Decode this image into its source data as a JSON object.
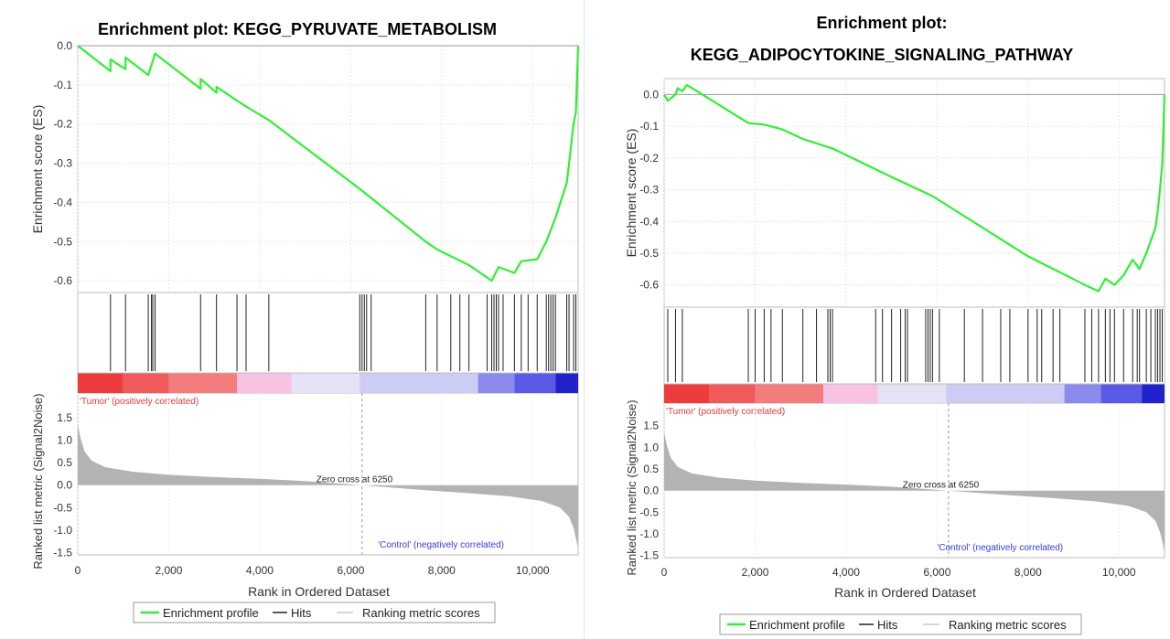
{
  "chart_data": [
    {
      "type": "line",
      "title": "Enrichment plot: KEGG_PYRUVATE_METABOLISM",
      "title_lines": [
        "Enrichment plot: KEGG_PYRUVATE_METABOLISM"
      ],
      "es_ylabel": "Enrichment score (ES)",
      "metric_ylabel": "Ranked list metric (Signal2Noise)",
      "xlabel": "Rank in Ordered Dataset",
      "xlim": [
        0,
        11000
      ],
      "x_ticks": [
        0,
        2000,
        4000,
        6000,
        8000,
        10000
      ],
      "x_tick_labels": [
        "0",
        "2,000",
        "4,000",
        "6,000",
        "8,000",
        "10,000"
      ],
      "es_ylim": [
        -0.63,
        0.0
      ],
      "es_ticks": [
        0.0,
        -0.1,
        -0.2,
        -0.3,
        -0.4,
        -0.5,
        -0.6
      ],
      "es_tick_labels": [
        "0.0",
        "-0.1",
        "-0.2",
        "-0.3",
        "-0.4",
        "-0.5",
        "-0.6"
      ],
      "metric_ylim": [
        -1.55,
        1.6
      ],
      "metric_ticks": [
        1.5,
        1.0,
        0.5,
        0.0,
        -0.5,
        -1.0,
        -1.5
      ],
      "metric_tick_labels": [
        "1.5",
        "1.0",
        "0.5",
        "0.0",
        "-0.5",
        "-1.0",
        "-1.5"
      ],
      "hits": [
        720,
        1050,
        1550,
        1620,
        1650,
        1700,
        2700,
        3050,
        3500,
        3700,
        4200,
        6200,
        6250,
        6300,
        6350,
        6450,
        7650,
        7900,
        8200,
        8400,
        8600,
        9000,
        9100,
        9150,
        9200,
        9250,
        9350,
        9600,
        9750,
        9900,
        10100,
        10300,
        10350,
        10400,
        10450,
        10500,
        10750,
        10800,
        10900,
        10950
      ],
      "es_curve": [
        [
          0,
          0.0
        ],
        [
          720,
          -0.065
        ],
        [
          720,
          -0.035
        ],
        [
          1050,
          -0.06
        ],
        [
          1050,
          -0.03
        ],
        [
          1550,
          -0.075
        ],
        [
          1620,
          -0.05
        ],
        [
          1700,
          -0.02
        ],
        [
          2700,
          -0.11
        ],
        [
          2700,
          -0.085
        ],
        [
          3050,
          -0.12
        ],
        [
          3050,
          -0.105
        ],
        [
          3500,
          -0.14
        ],
        [
          3700,
          -0.155
        ],
        [
          4200,
          -0.19
        ],
        [
          6250,
          -0.37
        ],
        [
          7650,
          -0.5
        ],
        [
          7900,
          -0.52
        ],
        [
          8600,
          -0.56
        ],
        [
          9100,
          -0.6
        ],
        [
          9250,
          -0.565
        ],
        [
          9600,
          -0.58
        ],
        [
          9750,
          -0.55
        ],
        [
          10100,
          -0.545
        ],
        [
          10300,
          -0.5
        ],
        [
          10400,
          -0.47
        ],
        [
          10500,
          -0.44
        ],
        [
          10750,
          -0.35
        ],
        [
          10800,
          -0.3
        ],
        [
          10900,
          -0.2
        ],
        [
          10950,
          -0.17
        ],
        [
          11000,
          0.0
        ]
      ],
      "metric_curve": [
        [
          0,
          1.35
        ],
        [
          60,
          1.05
        ],
        [
          150,
          0.75
        ],
        [
          300,
          0.55
        ],
        [
          600,
          0.4
        ],
        [
          1200,
          0.3
        ],
        [
          2000,
          0.23
        ],
        [
          3000,
          0.18
        ],
        [
          4000,
          0.14
        ],
        [
          5000,
          0.09
        ],
        [
          6250,
          0.0
        ],
        [
          7500,
          -0.1
        ],
        [
          8500,
          -0.17
        ],
        [
          9500,
          -0.25
        ],
        [
          10200,
          -0.35
        ],
        [
          10600,
          -0.5
        ],
        [
          10800,
          -0.7
        ],
        [
          10900,
          -0.95
        ],
        [
          11000,
          -1.4
        ]
      ],
      "zero_cross_x": 6250,
      "zero_cross_text": "Zero cross at 6250",
      "pos_label": "'Tumor' (positively correlated)",
      "neg_label": "'Control' (negatively correlated)",
      "heat_colors": [
        "#ee3b3b",
        "#f05a5a",
        "#f37d7d",
        "#f7c2e3",
        "#e6e2f5",
        "#ccccf5",
        "#8a8aec",
        "#5a5ae6",
        "#2222cc"
      ],
      "heat_stops": [
        0,
        1000,
        2000,
        3500,
        4700,
        6200,
        8800,
        9600,
        10500,
        11000
      ],
      "line_color": "#33ee33",
      "hit_color": "#222222",
      "bar_color": "#b3b3b3",
      "neg_label_x": 6600
    },
    {
      "type": "line",
      "title": "Enrichment plot: KEGG_ADIPOCYTOKINE_SIGNALING_PATHWAY",
      "title_lines": [
        "Enrichment plot:",
        "KEGG_ADIPOCYTOKINE_SIGNALING_PATHWAY"
      ],
      "es_ylabel": "Enrichment score (ES)",
      "metric_ylabel": "Ranked list metric (Signal2Noise)",
      "xlabel": "Rank in Ordered Dataset",
      "xlim": [
        0,
        11000
      ],
      "x_ticks": [
        0,
        2000,
        4000,
        6000,
        8000,
        10000
      ],
      "x_tick_labels": [
        "0",
        "2,000",
        "4,000",
        "6,000",
        "8,000",
        "10,000"
      ],
      "es_ylim": [
        -0.67,
        0.05
      ],
      "es_ticks": [
        0.0,
        -0.1,
        -0.2,
        -0.3,
        -0.4,
        -0.5,
        -0.6
      ],
      "es_tick_labels": [
        "0.0",
        "-0.1",
        "-0.2",
        "-0.3",
        "-0.4",
        "-0.5",
        "-0.6"
      ],
      "metric_ylim": [
        -1.55,
        1.6
      ],
      "metric_ticks": [
        1.5,
        1.0,
        0.5,
        0.0,
        -0.5,
        -1.0,
        -1.5
      ],
      "metric_tick_labels": [
        "1.5",
        "1.0",
        "0.5",
        "0.0",
        "-0.5",
        "-1.0",
        "-1.5"
      ],
      "hits": [
        80,
        250,
        400,
        1850,
        2000,
        2200,
        2350,
        2600,
        3050,
        3350,
        3600,
        3650,
        3700,
        4650,
        4800,
        5000,
        5200,
        5300,
        5350,
        5750,
        5800,
        5850,
        5900,
        6050,
        6600,
        7000,
        7400,
        7600,
        8000,
        8200,
        8300,
        8550,
        8700,
        9250,
        9400,
        9550,
        9700,
        9800,
        9900,
        10100,
        10300,
        10400,
        10450,
        10600,
        10700,
        10800,
        10850,
        10900,
        10950
      ],
      "es_curve": [
        [
          0,
          0.0
        ],
        [
          80,
          -0.02
        ],
        [
          250,
          0.0
        ],
        [
          300,
          0.02
        ],
        [
          400,
          0.01
        ],
        [
          500,
          0.03
        ],
        [
          1850,
          -0.09
        ],
        [
          2200,
          -0.095
        ],
        [
          2600,
          -0.11
        ],
        [
          3050,
          -0.14
        ],
        [
          3700,
          -0.17
        ],
        [
          5000,
          -0.26
        ],
        [
          5900,
          -0.32
        ],
        [
          8000,
          -0.51
        ],
        [
          8700,
          -0.56
        ],
        [
          9250,
          -0.6
        ],
        [
          9550,
          -0.62
        ],
        [
          9700,
          -0.58
        ],
        [
          9900,
          -0.6
        ],
        [
          10100,
          -0.57
        ],
        [
          10300,
          -0.52
        ],
        [
          10450,
          -0.55
        ],
        [
          10600,
          -0.5
        ],
        [
          10800,
          -0.42
        ],
        [
          10850,
          -0.37
        ],
        [
          10900,
          -0.3
        ],
        [
          10950,
          -0.22
        ],
        [
          11000,
          0.0
        ]
      ],
      "metric_curve": [
        [
          0,
          1.35
        ],
        [
          60,
          1.05
        ],
        [
          150,
          0.75
        ],
        [
          300,
          0.55
        ],
        [
          600,
          0.4
        ],
        [
          1200,
          0.3
        ],
        [
          2000,
          0.23
        ],
        [
          3000,
          0.18
        ],
        [
          4000,
          0.14
        ],
        [
          5000,
          0.09
        ],
        [
          6250,
          0.0
        ],
        [
          7500,
          -0.1
        ],
        [
          8500,
          -0.17
        ],
        [
          9500,
          -0.25
        ],
        [
          10200,
          -0.35
        ],
        [
          10600,
          -0.5
        ],
        [
          10800,
          -0.7
        ],
        [
          10900,
          -0.95
        ],
        [
          11000,
          -1.4
        ]
      ],
      "zero_cross_x": 6250,
      "zero_cross_text": "Zero cross at 6250",
      "pos_label": "'Tumor' (positively correlated)",
      "neg_label": "'Control' (negatively correlated)",
      "heat_colors": [
        "#ee3b3b",
        "#f05a5a",
        "#f37d7d",
        "#f7c2e3",
        "#e6e2f5",
        "#ccccf5",
        "#8a8aec",
        "#5a5ae6",
        "#2222cc"
      ],
      "heat_stops": [
        0,
        1000,
        2000,
        3500,
        4700,
        6200,
        8800,
        9600,
        10500,
        11000
      ],
      "line_color": "#33ee33",
      "hit_color": "#222222",
      "bar_color": "#b3b3b3",
      "neg_label_x": 6000
    }
  ],
  "legend": {
    "profile_label": "Enrichment profile",
    "hits_label": "Hits",
    "metric_label": "Ranking metric scores"
  }
}
